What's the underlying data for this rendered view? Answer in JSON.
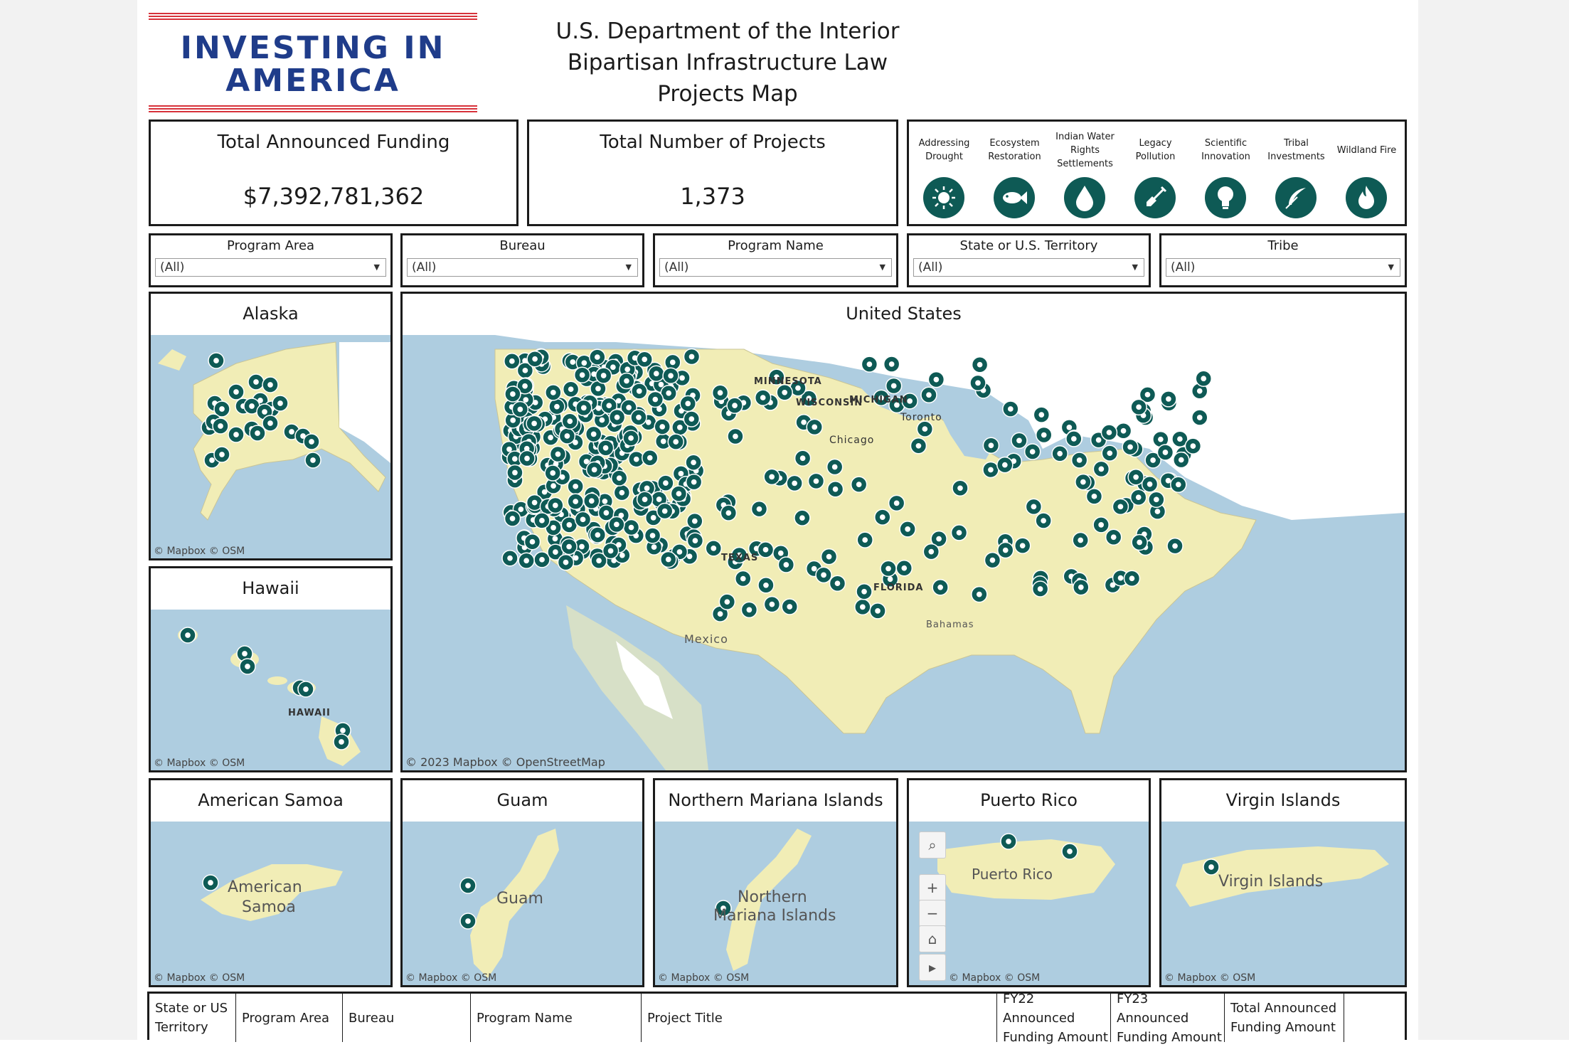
{
  "logo": {
    "line1": "INVESTING IN",
    "line2": "AMERICA"
  },
  "title": {
    "line1": "U.S. Department of the Interior",
    "line2": "Bipartisan Infrastructure Law",
    "line3": "Projects Map"
  },
  "kpis": {
    "funding_label": "Total Announced Funding",
    "funding_value": "$7,392,781,362",
    "projects_label": "Total Number of  Projects",
    "projects_value": "1,373"
  },
  "legend": [
    {
      "label": "Addressing Drought",
      "icon": "sun-icon"
    },
    {
      "label": "Ecosystem Restoration",
      "icon": "fish-icon"
    },
    {
      "label": "Indian Water Rights Settlements",
      "icon": "water-drop-icon"
    },
    {
      "label": "Legacy Pollution",
      "icon": "shovel-icon"
    },
    {
      "label": "Scientific Innovation",
      "icon": "lightbulb-icon"
    },
    {
      "label": "Tribal Investments",
      "icon": "feather-icon"
    },
    {
      "label": "Wildland Fire",
      "icon": "flame-icon"
    }
  ],
  "filters": [
    {
      "label": "Program Area",
      "value": "(All)"
    },
    {
      "label": "Bureau",
      "value": "(All)"
    },
    {
      "label": "Program Name",
      "value": "(All)"
    },
    {
      "label": "State or U.S. Territory",
      "value": "(All)"
    },
    {
      "label": "Tribe",
      "value": "(All)"
    }
  ],
  "maps": {
    "alaska": {
      "title": "Alaska",
      "attr": "© Mapbox  © OSM"
    },
    "hawaii": {
      "title": "Hawaii",
      "attr": "© Mapbox  © OSM",
      "label": "HAWAII"
    },
    "us": {
      "title": "United States",
      "attr": "© 2023 Mapbox  © OpenStreetMap",
      "labels": {
        "minnesota": "MINNESOTA",
        "wisconsin": "WISCONSIN",
        "michigan": "MICHIGAN",
        "toronto": "Toronto",
        "chicago": "Chicago",
        "texas": "TEXAS",
        "florida": "FLORIDA",
        "mexico": "Mexico",
        "bahamas": "Bahamas"
      }
    },
    "american_samoa": {
      "title": "American Samoa",
      "attr": "© Mapbox  © OSM",
      "label1": "American",
      "label2": "Samoa"
    },
    "guam": {
      "title": "Guam",
      "attr": "© Mapbox  © OSM",
      "label": "Guam"
    },
    "northern_mariana": {
      "title": "Northern Mariana Islands",
      "attr": "© Mapbox  © OSM",
      "label1": "Northern",
      "label2": "Mariana Islands"
    },
    "puerto_rico": {
      "title": "Puerto Rico",
      "attr": "© Mapbox  © OSM",
      "label": "Puerto Rico"
    },
    "virgin_islands": {
      "title": "Virgin Islands",
      "attr": "© Mapbox  © OSM",
      "label": "Virgin Islands"
    }
  },
  "table": {
    "columns": [
      "State or US Territory",
      "Program Area",
      "Bureau",
      "Program Name",
      "Project Title",
      "FY22 Announced Funding Amount",
      "FY23 Announced Funding Amount",
      "Total Announced Funding Amount"
    ]
  },
  "colors": {
    "marker": "#0e5a55",
    "land": "#f1edb6",
    "water": "#aecde0",
    "logo_blue": "#1f3c8a",
    "logo_red": "#d7323a"
  }
}
